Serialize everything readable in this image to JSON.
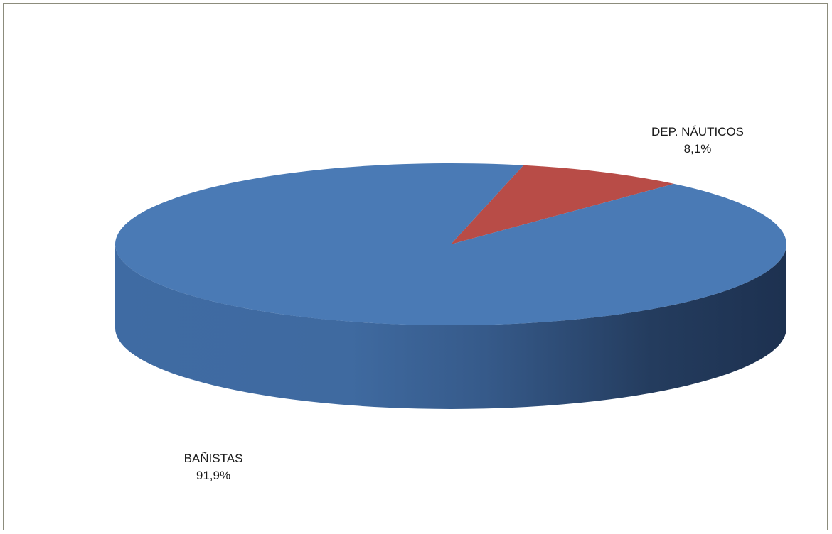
{
  "colors": {
    "banistas": "#4a7ab5",
    "nauticos": "#b84c47",
    "frame_border": "#8c8c7c"
  },
  "chart_data": {
    "type": "pie",
    "title": "",
    "categories": [
      "DEP. NÁUTICOS",
      "BAÑISTAS"
    ],
    "values": [
      8.1,
      91.9
    ],
    "value_labels": [
      "8,1%",
      "91,9%"
    ],
    "style": "3d",
    "legend": "none",
    "slice_labels": [
      {
        "name": "DEP. NÁUTICOS",
        "value": "8,1%"
      },
      {
        "name": "BAÑISTAS",
        "value": "91,9%"
      }
    ]
  }
}
